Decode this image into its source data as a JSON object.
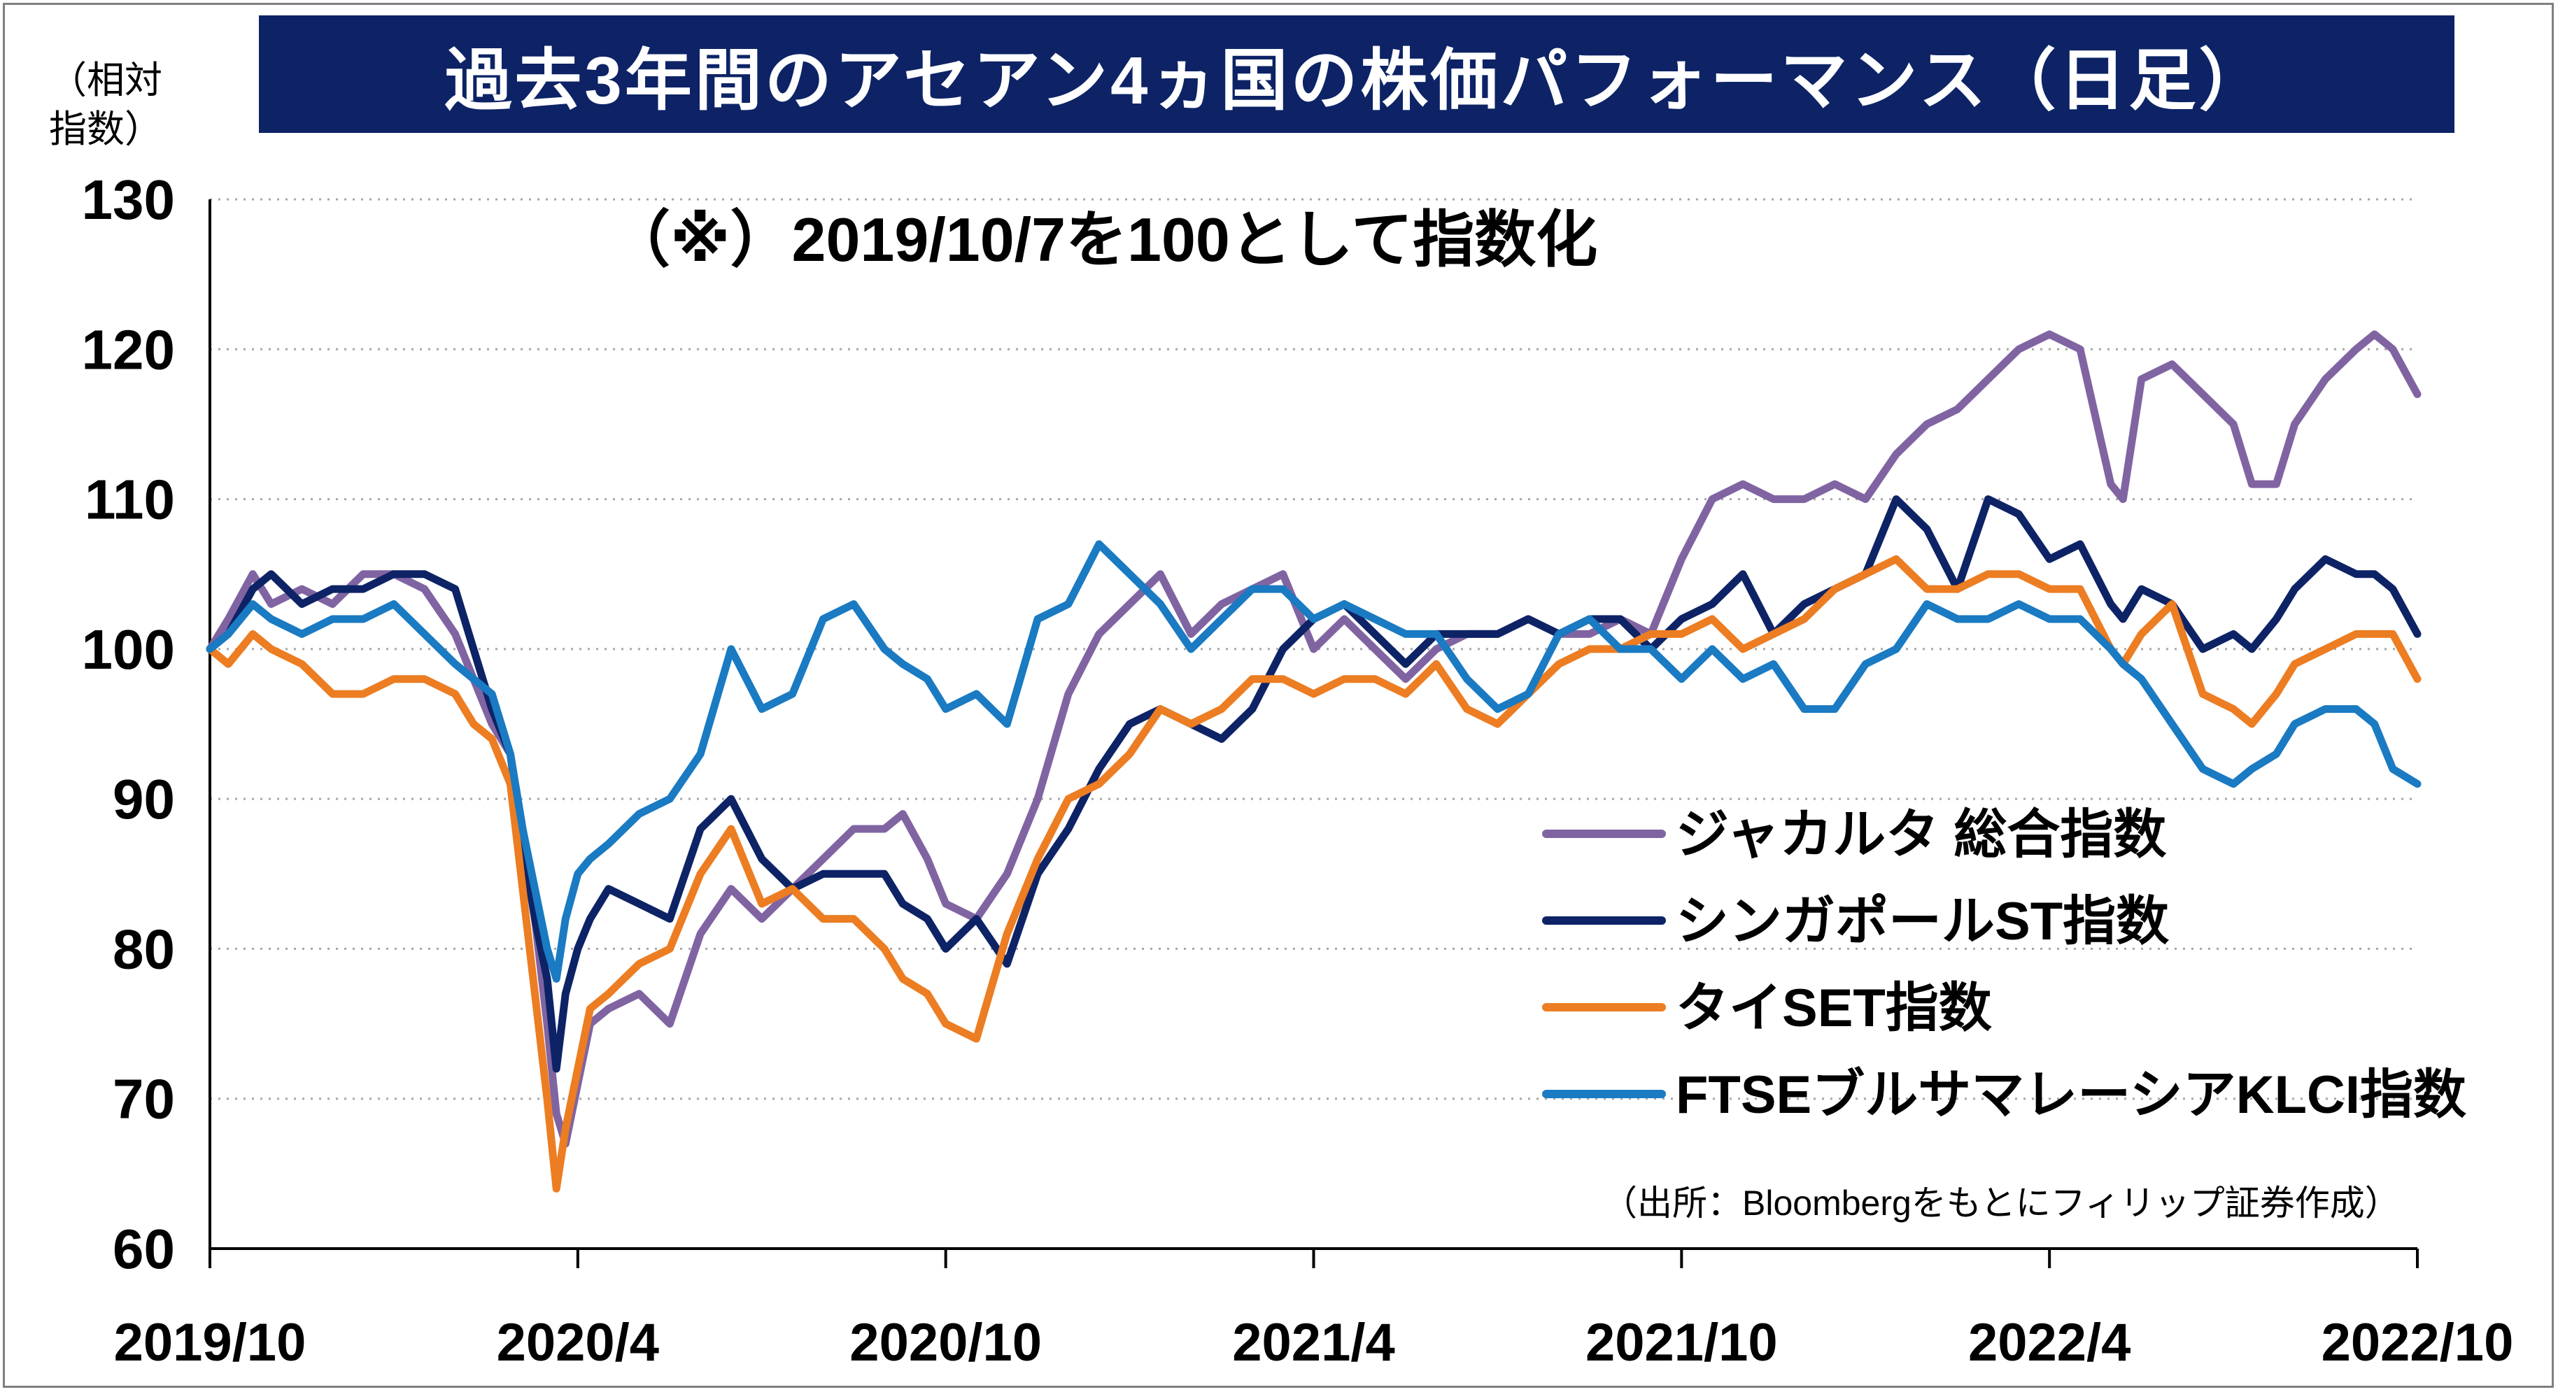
{
  "title": "過去3年間のアセアン4ヵ国の株価パフォーマンス（日足）",
  "note": "（※）2019/10/7を100として指数化",
  "source": "（出所：Bloombergをもとにフィリップ証券作成）",
  "chart_data": {
    "type": "line",
    "ylabel": "（相対\n指数）",
    "ylim": [
      60,
      130
    ],
    "yticks": [
      "60",
      "70",
      "80",
      "90",
      "100",
      "110",
      "120",
      "130"
    ],
    "xticks": [
      "2019/10",
      "2020/4",
      "2020/10",
      "2021/4",
      "2021/10",
      "2022/4",
      "2022/10"
    ],
    "xlim": [
      0,
      36
    ],
    "grid": "horizontal-dotted",
    "legend_position": "right",
    "series": [
      {
        "name": "ジャカルタ 総合指数",
        "color": "#8064a2",
        "x": [
          0,
          0.3,
          0.7,
          1.0,
          1.5,
          2.0,
          2.5,
          3.0,
          3.5,
          4.0,
          4.3,
          4.6,
          4.9,
          5.1,
          5.3,
          5.5,
          5.65,
          5.8,
          6.0,
          6.2,
          6.5,
          7.0,
          7.5,
          8.0,
          8.5,
          9.0,
          9.5,
          10.0,
          10.5,
          11.0,
          11.3,
          11.7,
          12.0,
          12.5,
          13.0,
          13.5,
          14.0,
          14.5,
          15.0,
          15.5,
          16.0,
          16.5,
          17.0,
          17.5,
          18.0,
          18.5,
          19.0,
          19.5,
          20.0,
          20.5,
          21.0,
          21.5,
          22.0,
          22.5,
          23.0,
          23.5,
          24.0,
          24.5,
          25.0,
          25.5,
          26.0,
          26.5,
          27.0,
          27.5,
          28.0,
          28.5,
          29.0,
          29.5,
          30.0,
          30.5,
          31.0,
          31.2,
          31.5,
          32.0,
          32.5,
          33.0,
          33.3,
          33.7,
          34.0,
          34.5,
          35.0,
          35.3,
          35.6,
          36.0
        ],
        "values": [
          100,
          102,
          105,
          103,
          104,
          103,
          105,
          105,
          104,
          101,
          98,
          95,
          93,
          88,
          82,
          75,
          69,
          67,
          71,
          75,
          76,
          77,
          75,
          81,
          84,
          82,
          84,
          86,
          88,
          88,
          89,
          86,
          83,
          82,
          85,
          90,
          97,
          101,
          103,
          105,
          101,
          103,
          104,
          105,
          100,
          102,
          100,
          98,
          100,
          101,
          101,
          102,
          101,
          101,
          102,
          101,
          106,
          110,
          111,
          110,
          110,
          111,
          110,
          113,
          115,
          116,
          118,
          120,
          121,
          120,
          111,
          110,
          118,
          119,
          117,
          115,
          111,
          111,
          115,
          118,
          120,
          121,
          120,
          117
        ]
      },
      {
        "name": "シンガポールST指数",
        "color": "#0d2366",
        "x": [
          0,
          0.3,
          0.7,
          1.0,
          1.5,
          2.0,
          2.5,
          3.0,
          3.5,
          4.0,
          4.3,
          4.6,
          4.9,
          5.1,
          5.3,
          5.5,
          5.65,
          5.8,
          6.0,
          6.2,
          6.5,
          7.0,
          7.5,
          8.0,
          8.5,
          9.0,
          9.5,
          10.0,
          10.5,
          11.0,
          11.3,
          11.7,
          12.0,
          12.5,
          13.0,
          13.5,
          14.0,
          14.5,
          15.0,
          15.5,
          16.0,
          16.5,
          17.0,
          17.5,
          18.0,
          18.5,
          19.0,
          19.5,
          20.0,
          20.5,
          21.0,
          21.5,
          22.0,
          22.5,
          23.0,
          23.5,
          24.0,
          24.5,
          25.0,
          25.5,
          26.0,
          26.5,
          27.0,
          27.5,
          28.0,
          28.5,
          29.0,
          29.5,
          30.0,
          30.5,
          31.0,
          31.2,
          31.5,
          32.0,
          32.5,
          33.0,
          33.3,
          33.7,
          34.0,
          34.5,
          35.0,
          35.3,
          35.6,
          36.0
        ],
        "values": [
          100,
          101,
          104,
          105,
          103,
          104,
          104,
          105,
          105,
          104,
          100,
          96,
          93,
          87,
          82,
          78,
          72,
          77,
          80,
          82,
          84,
          83,
          82,
          88,
          90,
          86,
          84,
          85,
          85,
          85,
          83,
          82,
          80,
          82,
          79,
          85,
          88,
          92,
          95,
          96,
          95,
          94,
          96,
          100,
          102,
          103,
          101,
          99,
          101,
          101,
          101,
          102,
          101,
          102,
          102,
          100,
          102,
          103,
          105,
          101,
          103,
          104,
          105,
          110,
          108,
          104,
          110,
          109,
          106,
          107,
          103,
          102,
          104,
          103,
          100,
          101,
          100,
          102,
          104,
          106,
          105,
          105,
          104,
          101
        ]
      },
      {
        "name": "タイSET指数",
        "color": "#ec7d22",
        "x": [
          0,
          0.3,
          0.7,
          1.0,
          1.5,
          2.0,
          2.5,
          3.0,
          3.5,
          4.0,
          4.3,
          4.6,
          4.9,
          5.1,
          5.3,
          5.5,
          5.65,
          5.8,
          6.0,
          6.2,
          6.5,
          7.0,
          7.5,
          8.0,
          8.5,
          9.0,
          9.5,
          10.0,
          10.5,
          11.0,
          11.3,
          11.7,
          12.0,
          12.5,
          13.0,
          13.5,
          14.0,
          14.5,
          15.0,
          15.5,
          16.0,
          16.5,
          17.0,
          17.5,
          18.0,
          18.5,
          19.0,
          19.5,
          20.0,
          20.5,
          21.0,
          21.5,
          22.0,
          22.5,
          23.0,
          23.5,
          24.0,
          24.5,
          25.0,
          25.5,
          26.0,
          26.5,
          27.0,
          27.5,
          28.0,
          28.5,
          29.0,
          29.5,
          30.0,
          30.5,
          31.0,
          31.2,
          31.5,
          32.0,
          32.5,
          33.0,
          33.3,
          33.7,
          34.0,
          34.5,
          35.0,
          35.3,
          35.6,
          36.0
        ],
        "values": [
          100,
          99,
          101,
          100,
          99,
          97,
          97,
          98,
          98,
          97,
          95,
          94,
          91,
          84,
          77,
          70,
          64,
          68,
          72,
          76,
          77,
          79,
          80,
          85,
          88,
          83,
          84,
          82,
          82,
          80,
          78,
          77,
          75,
          74,
          81,
          86,
          90,
          91,
          93,
          96,
          95,
          96,
          98,
          98,
          97,
          98,
          98,
          97,
          99,
          96,
          95,
          97,
          99,
          100,
          100,
          101,
          101,
          102,
          100,
          101,
          102,
          104,
          105,
          106,
          104,
          104,
          105,
          105,
          104,
          104,
          100,
          99,
          101,
          103,
          97,
          96,
          95,
          97,
          99,
          100,
          101,
          101,
          101,
          98
        ]
      },
      {
        "name": "FTSEブルサマレーシアKLCI指数",
        "color": "#1a7ac2",
        "x": [
          0,
          0.3,
          0.7,
          1.0,
          1.5,
          2.0,
          2.5,
          3.0,
          3.5,
          4.0,
          4.3,
          4.6,
          4.9,
          5.1,
          5.3,
          5.5,
          5.65,
          5.8,
          6.0,
          6.2,
          6.5,
          7.0,
          7.5,
          8.0,
          8.5,
          9.0,
          9.5,
          10.0,
          10.5,
          11.0,
          11.3,
          11.7,
          12.0,
          12.5,
          13.0,
          13.5,
          14.0,
          14.5,
          15.0,
          15.5,
          16.0,
          16.5,
          17.0,
          17.5,
          18.0,
          18.5,
          19.0,
          19.5,
          20.0,
          20.5,
          21.0,
          21.5,
          22.0,
          22.5,
          23.0,
          23.5,
          24.0,
          24.5,
          25.0,
          25.5,
          26.0,
          26.5,
          27.0,
          27.5,
          28.0,
          28.5,
          29.0,
          29.5,
          30.0,
          30.5,
          31.0,
          31.2,
          31.5,
          32.0,
          32.5,
          33.0,
          33.3,
          33.7,
          34.0,
          34.5,
          35.0,
          35.3,
          35.6,
          36.0
        ],
        "values": [
          100,
          101,
          103,
          102,
          101,
          102,
          102,
          103,
          101,
          99,
          98,
          97,
          93,
          88,
          84,
          80,
          78,
          82,
          85,
          86,
          87,
          89,
          90,
          93,
          100,
          96,
          97,
          102,
          103,
          100,
          99,
          98,
          96,
          97,
          95,
          102,
          103,
          107,
          105,
          103,
          100,
          102,
          104,
          104,
          102,
          103,
          102,
          101,
          101,
          98,
          96,
          97,
          101,
          102,
          100,
          100,
          98,
          100,
          98,
          99,
          96,
          96,
          99,
          100,
          103,
          102,
          102,
          103,
          102,
          102,
          100,
          99,
          98,
          95,
          92,
          91,
          92,
          93,
          95,
          96,
          96,
          95,
          92,
          91
        ]
      }
    ]
  }
}
